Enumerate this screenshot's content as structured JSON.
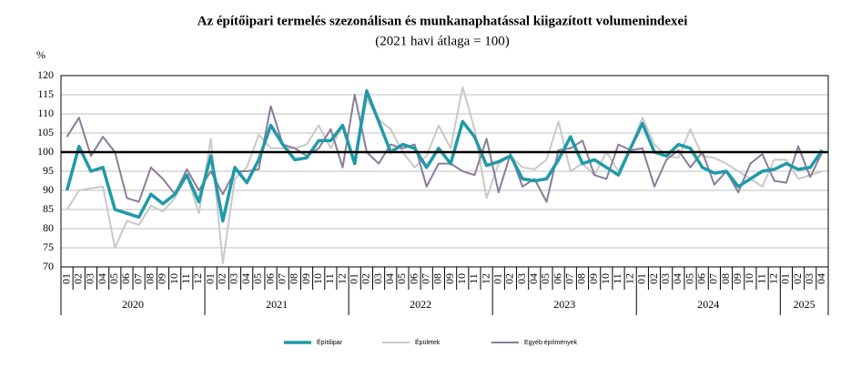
{
  "chart_data": {
    "type": "line",
    "title": "Az építőipari  termelés szezonálisan és munkanaphatással kiigazított volumenindexei",
    "subtitle": "(2021 havi átlaga = 100)",
    "y_unit": "%",
    "categories": [
      "01",
      "02",
      "03",
      "04",
      "05",
      "06",
      "07",
      "08",
      "09",
      "10",
      "11",
      "12",
      "01",
      "02",
      "03",
      "04",
      "05",
      "06",
      "07",
      "08",
      "09",
      "10",
      "11",
      "12",
      "01",
      "02",
      "03",
      "04",
      "05",
      "06",
      "07",
      "08",
      "09",
      "10",
      "11",
      "12",
      "01",
      "02",
      "03",
      "04",
      "05",
      "06",
      "07",
      "08",
      "09",
      "10",
      "11",
      "12",
      "01",
      "02",
      "03",
      "04",
      "05",
      "06",
      "07",
      "08",
      "09",
      "10",
      "11",
      "12",
      "01",
      "02",
      "03",
      "04"
    ],
    "groups": [
      "2020",
      "2021",
      "2022",
      "2023",
      "2024",
      "2025"
    ],
    "series": [
      {
        "name": "Épületek",
        "color": "#c9c9c9",
        "width": 2,
        "values": [
          85,
          90,
          90.5,
          91,
          75,
          82,
          81,
          86,
          84.5,
          88,
          94,
          84,
          103.5,
          71,
          93,
          96,
          104.5,
          101,
          101,
          101,
          102,
          107,
          101,
          107,
          97,
          114,
          108.5,
          106,
          100,
          96,
          99,
          107,
          101,
          117,
          106,
          88,
          97,
          99,
          96,
          95.5,
          98,
          108,
          95,
          97,
          94,
          100,
          95,
          101,
          109,
          102,
          99,
          98.5,
          106,
          99,
          98.5,
          97,
          95,
          93,
          91,
          98,
          98,
          93,
          94,
          95
        ]
      },
      {
        "name": "Egyéb építmények",
        "color": "#8c7c96",
        "width": 2,
        "values": [
          104,
          109,
          99,
          104,
          100,
          88,
          87,
          96,
          93,
          89,
          95.5,
          90,
          95,
          89,
          95,
          95,
          95.5,
          112,
          102,
          101,
          99,
          101,
          106,
          96,
          115,
          100,
          97,
          102,
          101,
          102,
          91,
          97,
          97,
          95,
          94,
          103.5,
          89.5,
          99.5,
          91,
          93,
          87,
          100.5,
          101,
          103,
          94,
          93,
          102,
          100.5,
          101,
          91,
          98,
          100.5,
          96,
          100,
          91.5,
          95,
          89.5,
          97,
          99.5,
          92.5,
          92,
          101.5,
          93.5,
          100
        ]
      },
      {
        "name": "Építőipar",
        "color": "#1f9aa8",
        "width": 3.5,
        "values": [
          90,
          101.5,
          95,
          96,
          85,
          84,
          83,
          89,
          86.5,
          89,
          94,
          87,
          99,
          82,
          96,
          92,
          98,
          107,
          102,
          98,
          98.5,
          103,
          103,
          107,
          97,
          116,
          108,
          100,
          102,
          101,
          96,
          101,
          97,
          108,
          104,
          96.5,
          97.5,
          99,
          93,
          92.5,
          93,
          98,
          104,
          97,
          98,
          96,
          94,
          101,
          107.5,
          100,
          99,
          102,
          101,
          96,
          94.5,
          95,
          91,
          93,
          95,
          95.5,
          97,
          95.5,
          96,
          100.5
        ]
      }
    ],
    "legend_order": [
      2,
      0,
      1
    ],
    "reference_line": 100,
    "ylim": [
      70,
      120
    ],
    "yticks": [
      70,
      75,
      80,
      85,
      90,
      95,
      100,
      105,
      110,
      115,
      120
    ]
  }
}
